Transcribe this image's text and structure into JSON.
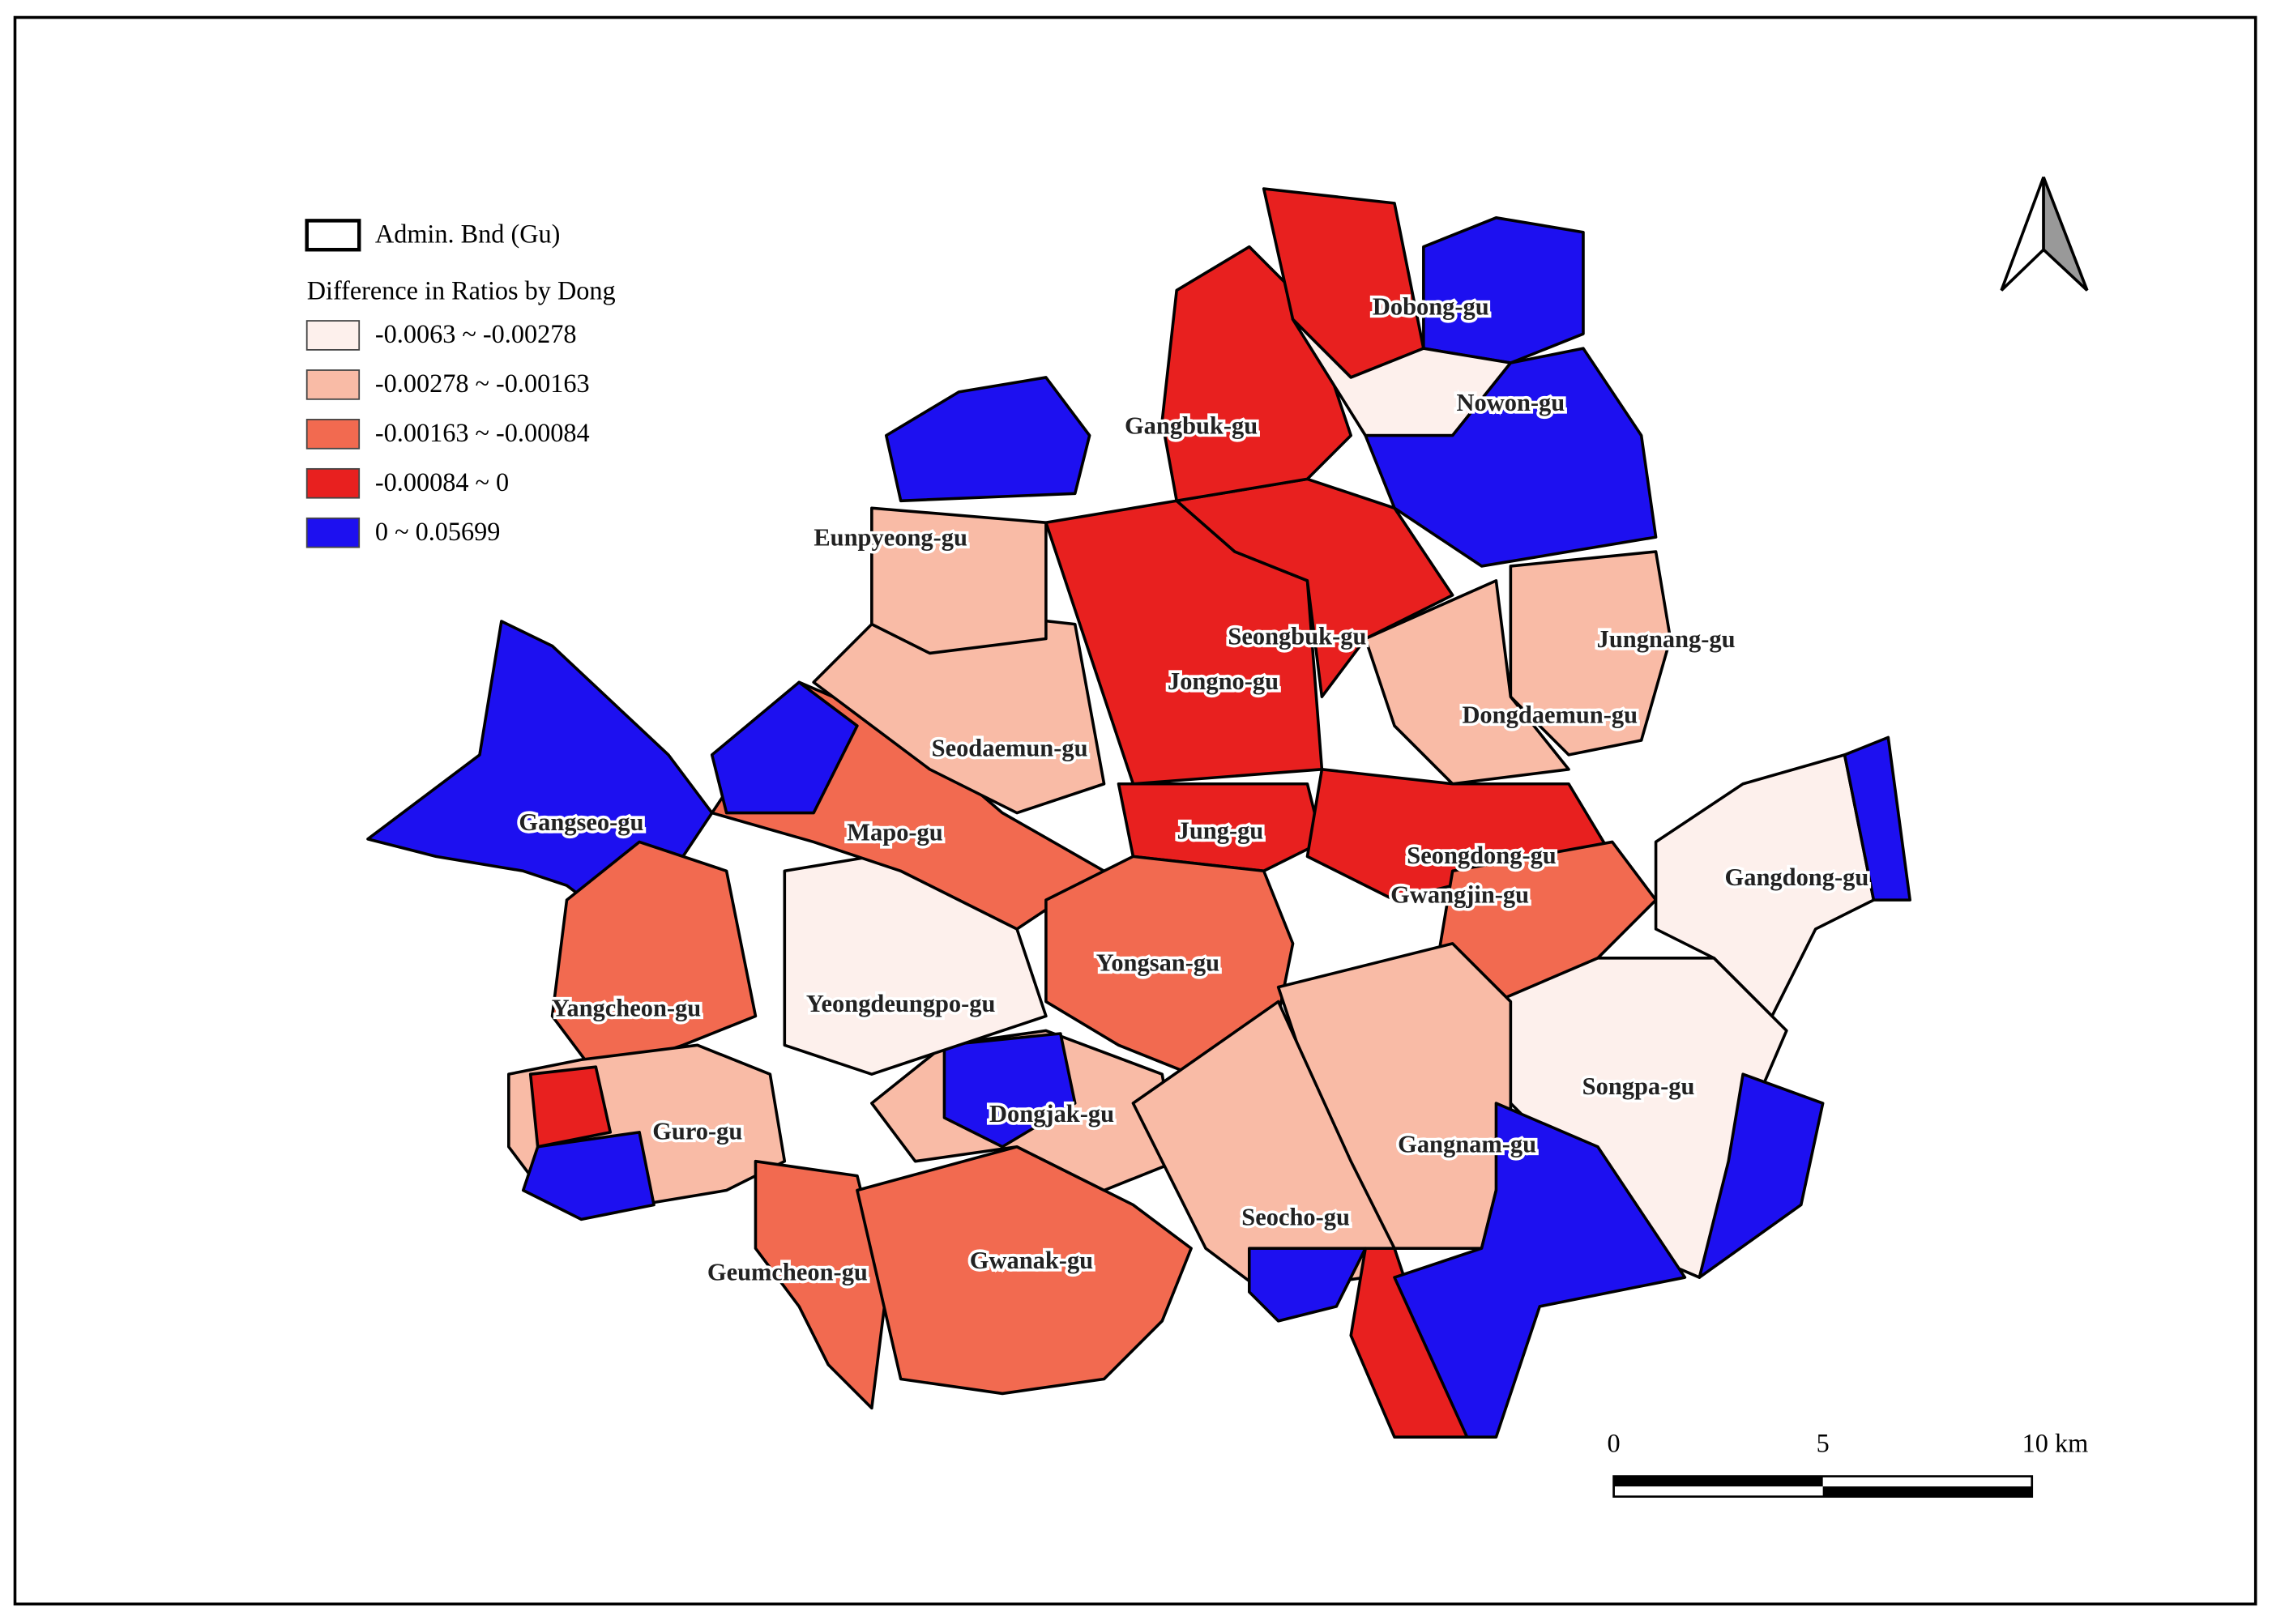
{
  "legend": {
    "boundary_label": "Admin. Bnd (Gu)",
    "title": "Difference in Ratios by Dong",
    "classes": [
      {
        "label": "-0.0063 ~ -0.00278",
        "color": "#fdf0ec"
      },
      {
        "label": "-0.00278 ~ -0.00163",
        "color": "#f9bba6"
      },
      {
        "label": "-0.00163 ~ -0.00084",
        "color": "#f26a50"
      },
      {
        "label": "-0.00084 ~ 0",
        "color": "#e8201f"
      },
      {
        "label": "0 ~ 0.05699",
        "color": "#1d10f0"
      }
    ]
  },
  "districts": [
    "Dobong-gu",
    "Nowon-gu",
    "Gangbuk-gu",
    "Eunpyeong-gu",
    "Seongbuk-gu",
    "Jungnang-gu",
    "Jongno-gu",
    "Dongdaemun-gu",
    "Seodaemun-gu",
    "Gangseo-gu",
    "Mapo-gu",
    "Jung-gu",
    "Seongdong-gu",
    "Gwangjin-gu",
    "Gangdong-gu",
    "Yongsan-gu",
    "Yangcheon-gu",
    "Yeongdeungpo-gu",
    "Songpa-gu",
    "Dongjak-gu",
    "Guro-gu",
    "Gangnam-gu",
    "Seocho-gu",
    "Geumcheon-gu",
    "Gwanak-gu"
  ],
  "scale_bar": {
    "labels": [
      "0",
      "5",
      "10 km"
    ]
  }
}
